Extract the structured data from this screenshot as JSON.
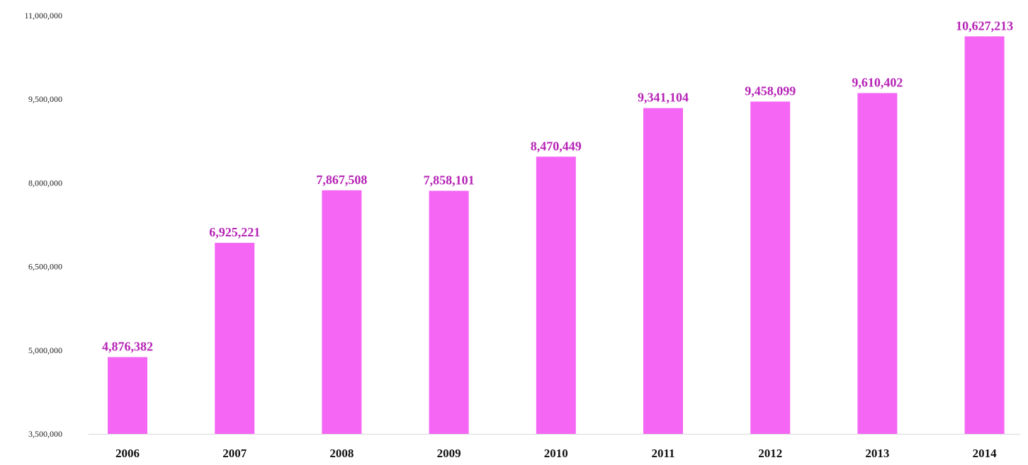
{
  "chart_data": {
    "type": "bar",
    "title": "",
    "xlabel": "",
    "ylabel": "",
    "categories": [
      "2006",
      "2007",
      "2008",
      "2009",
      "2010",
      "2011",
      "2012",
      "2013",
      "2014"
    ],
    "values": [
      4876382,
      6925221,
      7867508,
      7858101,
      8470449,
      9341104,
      9458099,
      9610402,
      10627213
    ],
    "data_labels": [
      "4,876,382",
      "6,925,221",
      "7,867,508",
      "7,858,101",
      "8,470,449",
      "9,341,104",
      "9,458,099",
      "9,610,402",
      "10,627,213"
    ],
    "ylim": [
      3500000,
      11000000
    ],
    "y_ticks": [
      3500000,
      5000000,
      6500000,
      8000000,
      9500000,
      11000000
    ],
    "y_tick_labels": [
      "3,500,000",
      "5,000,000",
      "6,500,000",
      "8,000,000",
      "9,500,000",
      "11,000,000"
    ],
    "grid": false,
    "legend": "none",
    "colors": {
      "bar": "#f566f5",
      "data_label": "#b623b6",
      "axis": "#d9d9d9"
    }
  }
}
